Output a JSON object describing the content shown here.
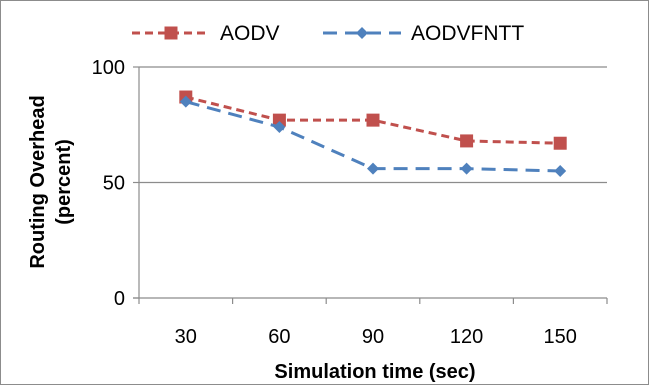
{
  "chart_data": {
    "type": "line",
    "title": "",
    "xlabel": "Simulation time (sec)",
    "ylabel_lines": [
      "Routing Overhead",
      "(percent)"
    ],
    "categories": [
      "30",
      "60",
      "90",
      "120",
      "150"
    ],
    "ylim": [
      0,
      100
    ],
    "yticks": [
      "0",
      "50",
      "100"
    ],
    "grid": true,
    "legend_position": "top",
    "series": [
      {
        "name": "AODV",
        "values": [
          87,
          77,
          77,
          68,
          67
        ],
        "color": "#c0504d",
        "marker": "square"
      },
      {
        "name": "AODVFNTT",
        "values": [
          85,
          74,
          56,
          56,
          55
        ],
        "color": "#4f81bd",
        "marker": "diamond"
      }
    ]
  }
}
